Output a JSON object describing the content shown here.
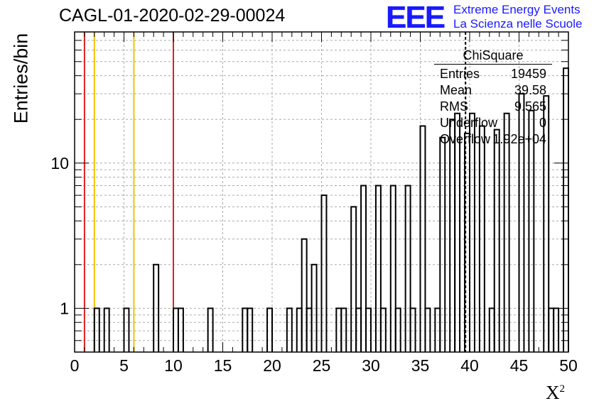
{
  "title": "CAGL-01-2020-02-29-00024",
  "logo": {
    "text": "EEE",
    "line1": "Extreme Energy Events",
    "line2": "La Scienza nelle Scuole",
    "color": "#1a1aff"
  },
  "stats": {
    "name": "ChiSquare",
    "rows": [
      {
        "label": "Entries",
        "value": "19459"
      },
      {
        "label": "Mean",
        "value": "39.58"
      },
      {
        "label": "RMS",
        "value": "9.565"
      },
      {
        "label": "Underflow",
        "value": "0"
      },
      {
        "label": "Overflow",
        "value": "1.92e+04"
      }
    ]
  },
  "chart_data": {
    "type": "bar",
    "title": "CAGL-01-2020-02-29-00024",
    "xlabel": "X",
    "xlabel_sup": "2",
    "ylabel": "Entries/bin",
    "xlim": [
      0,
      50
    ],
    "ylim": [
      0.5,
      80
    ],
    "yscale": "log",
    "grid": true,
    "bin_width": 0.5,
    "x_ticks": [
      0,
      5,
      10,
      15,
      20,
      25,
      30,
      35,
      40,
      45,
      50
    ],
    "y_ticks": [
      1,
      10
    ],
    "bins": [
      [
        2.0,
        1
      ],
      [
        3.0,
        1
      ],
      [
        5.0,
        1
      ],
      [
        8.0,
        2
      ],
      [
        10.0,
        1
      ],
      [
        10.5,
        1
      ],
      [
        13.5,
        1
      ],
      [
        17.0,
        1
      ],
      [
        17.5,
        1
      ],
      [
        19.5,
        1
      ],
      [
        21.5,
        1
      ],
      [
        22.5,
        1
      ],
      [
        23.0,
        3
      ],
      [
        23.5,
        1
      ],
      [
        24.0,
        2
      ],
      [
        25.0,
        6
      ],
      [
        26.5,
        1
      ],
      [
        27.0,
        1
      ],
      [
        28.0,
        5
      ],
      [
        28.5,
        1
      ],
      [
        29.0,
        7
      ],
      [
        29.5,
        1
      ],
      [
        30.5,
        7
      ],
      [
        31.0,
        1
      ],
      [
        32.0,
        7
      ],
      [
        32.5,
        1
      ],
      [
        33.5,
        7
      ],
      [
        34.0,
        1
      ],
      [
        35.0,
        18
      ],
      [
        35.5,
        1
      ],
      [
        36.5,
        1
      ],
      [
        37.0,
        15
      ],
      [
        38.0,
        20
      ],
      [
        38.5,
        22
      ],
      [
        39.5,
        16
      ],
      [
        40.0,
        22
      ],
      [
        41.0,
        18
      ],
      [
        42.0,
        1
      ],
      [
        42.5,
        17
      ],
      [
        43.5,
        22
      ],
      [
        45.0,
        30
      ],
      [
        46.0,
        23
      ],
      [
        47.5,
        29
      ],
      [
        48.0,
        1
      ],
      [
        48.5,
        1
      ],
      [
        49.5,
        45
      ]
    ],
    "vertical_lines": [
      {
        "x": 1,
        "color": "#e02020",
        "style": "solid"
      },
      {
        "x": 2,
        "color": "#f2c200",
        "style": "solid"
      },
      {
        "x": 6,
        "color": "#f2c200",
        "style": "solid"
      },
      {
        "x": 10,
        "color": "#e02020",
        "style": "solid"
      },
      {
        "x": 39.58,
        "color": "#000000",
        "style": "dashed"
      }
    ]
  }
}
